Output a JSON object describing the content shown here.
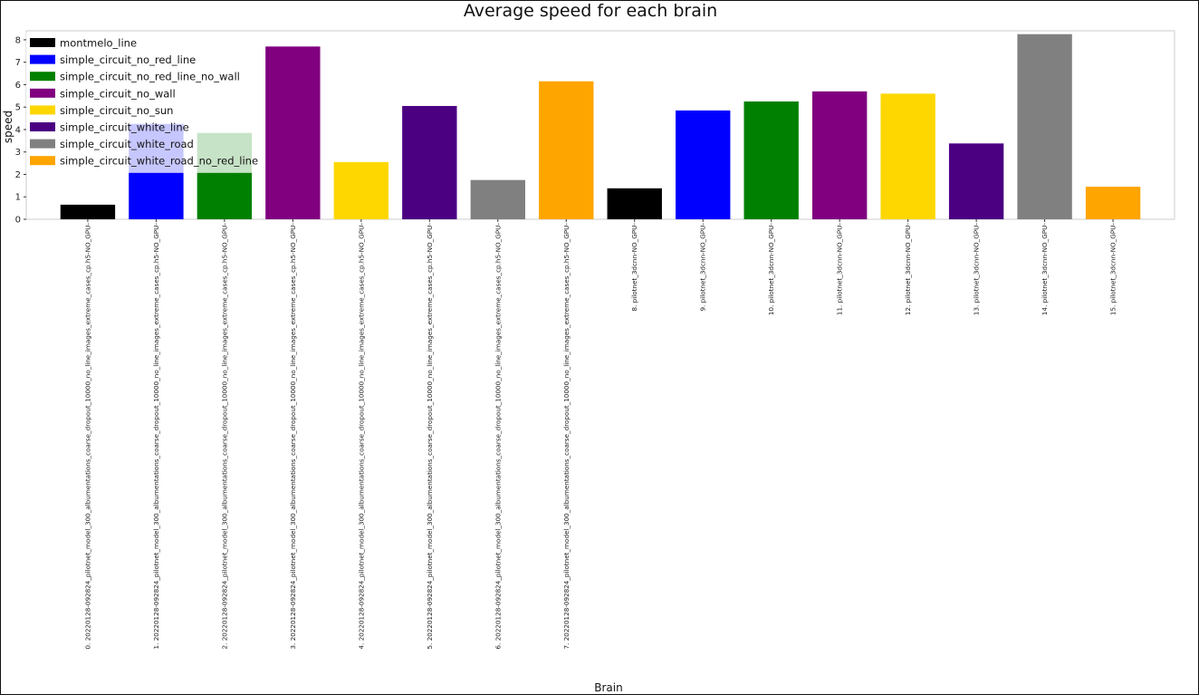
{
  "chart_data": {
    "type": "bar",
    "title": "Average speed for each brain",
    "xlabel": "Brain",
    "ylabel": "speed",
    "ylim": [
      0,
      8.4
    ],
    "yticks": [
      0,
      1,
      2,
      3,
      4,
      5,
      6,
      7,
      8
    ],
    "grid": false,
    "legend_position": "top-left",
    "categories": [
      "0. 20220128-092824_pilotnet_model_300_albumentations_coarse_dropout_10000_no_line_images_extreme_cases_cp.h5-NO_GPU-",
      "1. 20220128-092824_pilotnet_model_300_albumentations_coarse_dropout_10000_no_line_images_extreme_cases_cp.h5-NO_GPU-",
      "2. 20220128-092824_pilotnet_model_300_albumentations_coarse_dropout_10000_no_line_images_extreme_cases_cp.h5-NO_GPU-",
      "3. 20220128-092824_pilotnet_model_300_albumentations_coarse_dropout_10000_no_line_images_extreme_cases_cp.h5-NO_GPU-",
      "4. 20220128-092824_pilotnet_model_300_albumentations_coarse_dropout_10000_no_line_images_extreme_cases_cp.h5-NO_GPU-",
      "5. 20220128-092824_pilotnet_model_300_albumentations_coarse_dropout_10000_no_line_images_extreme_cases_cp.h5-NO_GPU-",
      "6. 20220128-092824_pilotnet_model_300_albumentations_coarse_dropout_10000_no_line_images_extreme_cases_cp.h5-NO_GPU-",
      "7. 20220128-092824_pilotnet_model_300_albumentations_coarse_dropout_10000_no_line_images_extreme_cases_cp.h5-NO_GPU-",
      "8. pilotnet_3dcnn-NO_GPU-",
      "9. pilotnet_3dcnn-NO_GPU-",
      "10. pilotnet_3dcnn-NO_GPU-",
      "11. pilotnet_3dcnn-NO_GPU-",
      "12. pilotnet_3dcnn-NO_GPU-",
      "13. pilotnet_3dcnn-NO_GPU-",
      "14. pilotnet_3dcnn-NO_GPU-",
      "15. pilotnet_3dcnn-NO_GPU-"
    ],
    "values": [
      0.65,
      4.25,
      3.85,
      7.7,
      2.55,
      5.05,
      1.75,
      6.15,
      1.38,
      4.85,
      5.25,
      5.7,
      5.6,
      3.38,
      8.25,
      1.45
    ],
    "bar_colors": [
      "#000000",
      "#0000ff",
      "#008000",
      "#800080",
      "#ffd700",
      "#4b0082",
      "#808080",
      "#ffa500",
      "#000000",
      "#0000ff",
      "#008000",
      "#800080",
      "#ffd700",
      "#4b0082",
      "#808080",
      "#ffa500"
    ],
    "legend": [
      {
        "name": "montmelo_line",
        "color": "#000000"
      },
      {
        "name": "simple_circuit_no_red_line",
        "color": "#0000ff"
      },
      {
        "name": "simple_circuit_no_red_line_no_wall",
        "color": "#008000"
      },
      {
        "name": "simple_circuit_no_wall",
        "color": "#800080"
      },
      {
        "name": "simple_circuit_no_sun",
        "color": "#ffd700"
      },
      {
        "name": "simple_circuit_white_line",
        "color": "#4b0082"
      },
      {
        "name": "simple_circuit_white_road",
        "color": "#808080"
      },
      {
        "name": "simple_circuit_white_road_no_red_line",
        "color": "#ffa500"
      }
    ]
  }
}
